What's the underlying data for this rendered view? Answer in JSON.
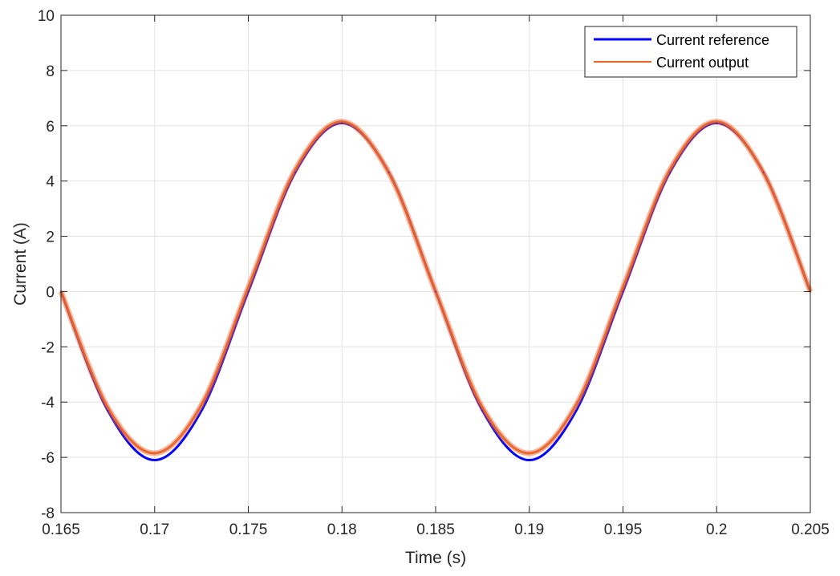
{
  "chart_data": {
    "type": "line",
    "title": "",
    "xlabel": "Time (s)",
    "ylabel": "Current (A)",
    "xlim": [
      0.165,
      0.205
    ],
    "ylim": [
      -8,
      10
    ],
    "x_ticks": [
      0.165,
      0.17,
      0.175,
      0.18,
      0.185,
      0.19,
      0.195,
      0.2,
      0.205
    ],
    "x_tick_labels": [
      "0.165",
      "0.17",
      "0.175",
      "0.18",
      "0.185",
      "0.19",
      "0.195",
      "0.2",
      "0.205"
    ],
    "y_ticks": [
      -8,
      -6,
      -4,
      -2,
      0,
      2,
      4,
      6,
      8,
      10
    ],
    "y_tick_labels": [
      "-8",
      "-6",
      "-4",
      "-2",
      "0",
      "2",
      "4",
      "6",
      "8",
      "10"
    ],
    "grid": true,
    "legend_position": "top-right",
    "series": [
      {
        "name": "Current reference",
        "color": "#0000ff",
        "x": [
          0.165,
          0.1675,
          0.17,
          0.1725,
          0.175,
          0.1775,
          0.18,
          0.1825,
          0.185,
          0.1875,
          0.19,
          0.1925,
          0.195,
          0.1975,
          0.2,
          0.2025,
          0.205
        ],
        "y": [
          0,
          -4.31,
          -6.1,
          -4.31,
          0,
          4.31,
          6.1,
          4.31,
          0,
          -4.31,
          -6.1,
          -4.31,
          0,
          4.31,
          6.1,
          4.31,
          0
        ]
      },
      {
        "name": "Current output",
        "color": "#e8622a",
        "x": [
          0.165,
          0.1675,
          0.17,
          0.1725,
          0.175,
          0.1775,
          0.18,
          0.1825,
          0.185,
          0.1875,
          0.19,
          0.1925,
          0.195,
          0.1975,
          0.2,
          0.2025,
          0.205
        ],
        "y": [
          0,
          -4.2,
          -5.85,
          -4.1,
          0.15,
          4.4,
          6.15,
          4.3,
          0,
          -4.2,
          -5.85,
          -4.1,
          0.15,
          4.4,
          6.15,
          4.3,
          0
        ]
      }
    ]
  }
}
